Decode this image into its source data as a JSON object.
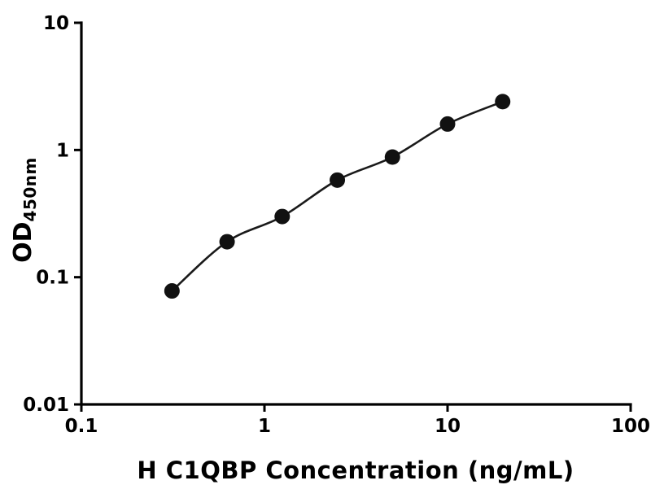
{
  "chart_data": {
    "type": "scatter",
    "line": true,
    "x": [
      0.3125,
      0.625,
      1.25,
      2.5,
      5,
      10,
      20
    ],
    "y": [
      0.078,
      0.19,
      0.3,
      0.58,
      0.88,
      1.6,
      2.4
    ],
    "title": "",
    "xlabel": "H C1QBP Concentration (ng/mL)",
    "ylabel_main": "OD",
    "ylabel_sub": "450nm",
    "xscale": "log",
    "yscale": "log",
    "xlim": [
      0.1,
      100
    ],
    "ylim": [
      0.01,
      10
    ],
    "x_tick_values": [
      0.1,
      1,
      10,
      100
    ],
    "x_tick_labels": [
      "0.1",
      "1",
      "10",
      "100"
    ],
    "y_tick_values": [
      0.01,
      0.1,
      1,
      10
    ],
    "y_tick_labels": [
      "0.01",
      "0.1",
      "1",
      "10"
    ],
    "grid": "off",
    "legend": "none",
    "marker_color": "#111111",
    "line_color": "#1a1a1a",
    "axis_color": "#000000"
  }
}
